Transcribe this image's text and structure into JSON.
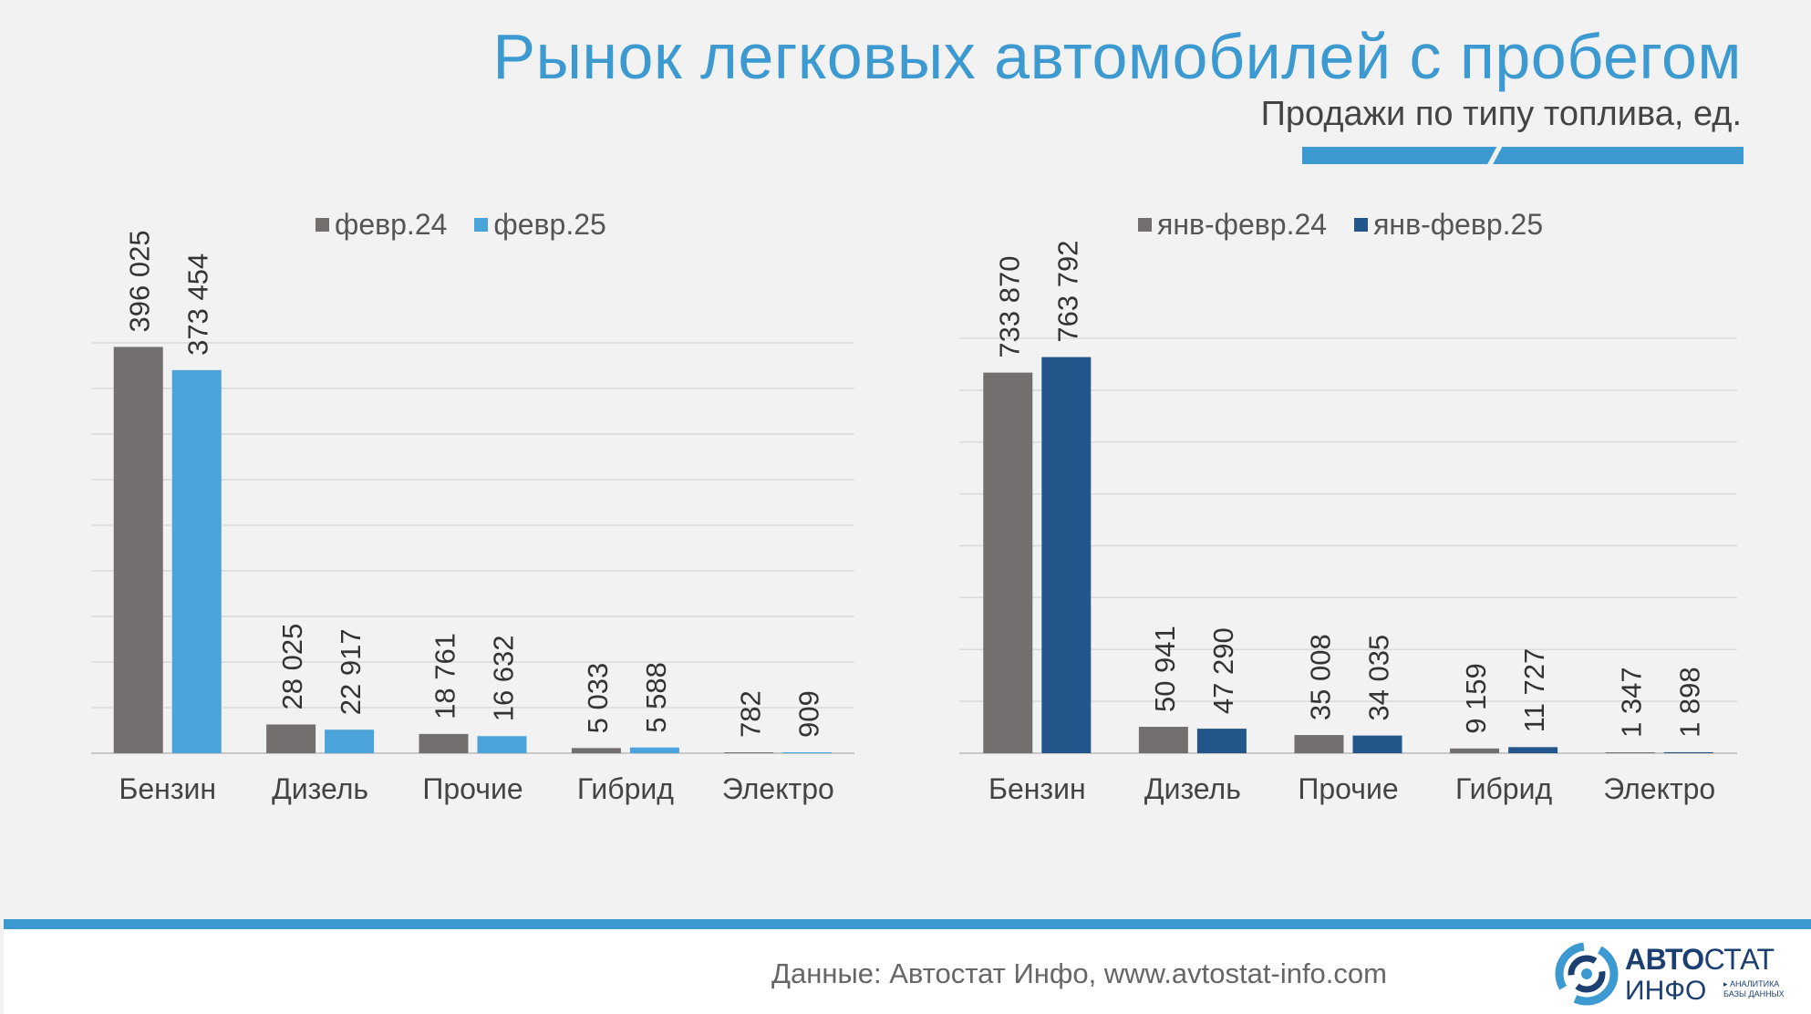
{
  "header": {
    "title": "Рынок легковых автомобилей с пробегом",
    "subtitle": "Продажи по типу топлива, ед."
  },
  "footer": {
    "source": "Данные: Автостат Инфо, www.avtostat-info.com",
    "logo_line1_bold": "АВТО",
    "logo_line1_light": "СТАТ",
    "logo_line2": "ИНФО",
    "logo_tag_line1": "▸ АНАЛИТИКА",
    "logo_tag_line2": "БАЗЫ ДАННЫХ"
  },
  "colors": {
    "accent": "#3d9ad1",
    "gray_bar": "#736f6f",
    "light_blue_bar": "#4aa3d9",
    "dark_blue_bar": "#23568a",
    "logo": "#1c3f72"
  },
  "chart_data": [
    {
      "type": "bar",
      "categories": [
        "Бензин",
        "Дизель",
        "Прочие",
        "Гибрид",
        "Электро"
      ],
      "series": [
        {
          "name": "февр.24",
          "values": [
            396025,
            28025,
            18761,
            5033,
            782
          ],
          "labels": [
            "396 025",
            "28 025",
            "18 761",
            "5 033",
            "782"
          ]
        },
        {
          "name": "февр.25",
          "values": [
            373454,
            22917,
            16632,
            5588,
            909
          ],
          "labels": [
            "373 454",
            "22 917",
            "16 632",
            "5 588",
            "909"
          ]
        }
      ],
      "ylim": [
        0,
        400000
      ],
      "grid": true,
      "legend_position": "top"
    },
    {
      "type": "bar",
      "categories": [
        "Бензин",
        "Дизель",
        "Прочие",
        "Гибрид",
        "Электро"
      ],
      "series": [
        {
          "name": "янв-февр.24",
          "values": [
            733870,
            50941,
            35008,
            9159,
            1347
          ],
          "labels": [
            "733 870",
            "50 941",
            "35 008",
            "9 159",
            "1 347"
          ]
        },
        {
          "name": "янв-февр.25",
          "values": [
            763792,
            47290,
            34035,
            11727,
            1898
          ],
          "labels": [
            "763 792",
            "47 290",
            "34 035",
            "11 727",
            "1 898"
          ]
        }
      ],
      "ylim": [
        0,
        800000
      ],
      "grid": true,
      "legend_position": "top"
    }
  ]
}
